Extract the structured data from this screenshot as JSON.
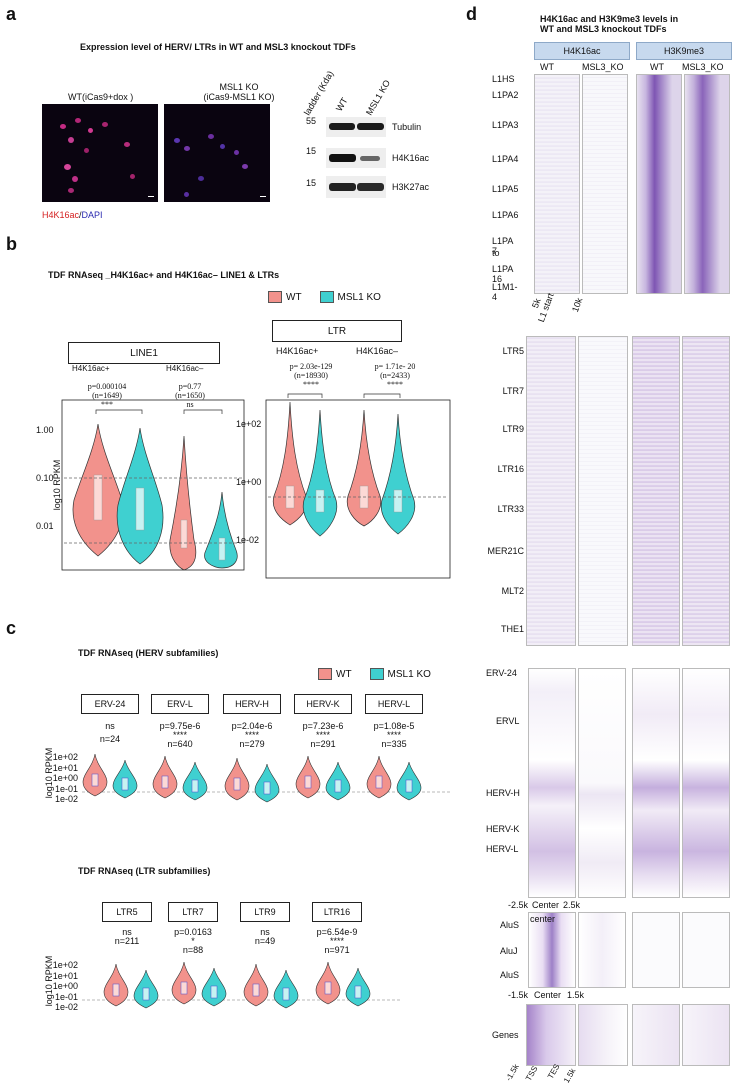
{
  "panels": {
    "a": {
      "label": "a",
      "title": "Expression level of HERV/ LTRs in WT and MSL3 knockout TDFs",
      "image_wt_label": "WT(iCas9+dox )",
      "image_ko_label_line1": "MSL1 KO",
      "image_ko_label_line2": "(iCas9-MSL1 KO)",
      "stain_red": "H4K16ac",
      "stain_sep": "/",
      "stain_blue": "DAPI",
      "blot_col_ladder": "ladder (Kda)",
      "blot_col_wt": "WT",
      "blot_col_ko": "MSL1 KO",
      "blot_rows": [
        {
          "kda": "55",
          "name": "Tubulin"
        },
        {
          "kda": "15",
          "name": "H4K16ac"
        },
        {
          "kda": "15",
          "name": "H3K27ac"
        }
      ]
    },
    "b": {
      "label": "b",
      "title": "TDF RNAseq _H4K16ac+ and H4K16ac– LINE1 & LTRs",
      "legend_wt": "WT",
      "legend_ko": "MSL1 KO",
      "line1_box": "LINE1",
      "ltr_box": "LTR",
      "ylabel": "log10 RPKM",
      "line1_groups": [
        {
          "name": "H4K16ac+",
          "p": "p=0.000104",
          "n": "(n=1649)",
          "sig": "***"
        },
        {
          "name": "H4K16ac–",
          "p": "p=0.77",
          "n": "(n=1650)",
          "sig": "ns"
        }
      ],
      "line1_ticks": [
        "1.00",
        "0.10",
        "0.01"
      ],
      "ltr_groups": [
        {
          "name": "H4K16ac+",
          "p": "p= 2.03e-129",
          "n": "(n=18930)",
          "sig": "****"
        },
        {
          "name": "H4K16ac–",
          "p": "p= 1.71e- 20",
          "n": "(n=2433)",
          "sig": "****"
        }
      ],
      "ltr_ticks": [
        "1e+02",
        "1e+00",
        "1e-02"
      ]
    },
    "c": {
      "label": "c",
      "title1": "TDF RNAseq (HERV subfamilies)",
      "legend_wt": "WT",
      "legend_ko": "MSL1 KO",
      "ylabel": "log10 RPKM",
      "ticks": [
        "1e+02",
        "1e+01",
        "1e+00",
        "1e-01",
        "1e-02"
      ],
      "herv": [
        {
          "name": "ERV-24",
          "p": "ns",
          "sig": "",
          "n": "n=24"
        },
        {
          "name": "ERV-L",
          "p": "p=9.75e-6",
          "sig": "****",
          "n": "n=640"
        },
        {
          "name": "HERV-H",
          "p": "p=2.04e-6",
          "sig": "****",
          "n": "n=279"
        },
        {
          "name": "HERV-K",
          "p": "p=7.23e-6",
          "sig": "****",
          "n": "n=291"
        },
        {
          "name": "HERV-L",
          "p": "p=1.08e-5",
          "sig": "****",
          "n": "n=335"
        }
      ],
      "title2": "TDF RNAseq (LTR subfamilies)",
      "ltr": [
        {
          "name": "LTR5",
          "p": "ns",
          "sig": "",
          "n": "n=211"
        },
        {
          "name": "LTR7",
          "p": "p=0.0163",
          "sig": "*",
          "n": "n=88"
        },
        {
          "name": "LTR9",
          "p": "ns",
          "sig": "",
          "n": "n=49"
        },
        {
          "name": "LTR16",
          "p": "p=6.54e-9",
          "sig": "****",
          "n": "n=971"
        }
      ]
    },
    "d": {
      "label": "d",
      "title_line1": "H4K16ac and H3K9me3 levels in",
      "title_line2": "WT and MSL3 knockout TDFs",
      "header_h4": "H4K16ac",
      "header_h3": "H3K9me3",
      "col_wt": "WT",
      "col_ko": "MSL3_KO",
      "l1_rows": [
        "L1HS",
        "L1PA2",
        "L1PA3",
        "L1PA4",
        "L1PA5",
        "L1PA6",
        "L1PA 7",
        "to",
        "L1PA 16",
        "L1M1-4"
      ],
      "l1_axis": [
        "5k",
        "L1 start",
        "10k"
      ],
      "ltr_rows": [
        "LTR5",
        "LTR7",
        "LTR9",
        "LTR16",
        "LTR33",
        "MER21C",
        "MLT2",
        "THE1"
      ],
      "herv_rows": [
        "ERV-24",
        "ERVL",
        "HERV-H",
        "HERV-K",
        "HERV-L"
      ],
      "herv_axis": [
        "-2.5k",
        "Center",
        "2.5k"
      ],
      "alu_center": "center",
      "alu_rows": [
        "AluS",
        "AluJ",
        "AluS"
      ],
      "alu_axis": [
        "-1.5k",
        "Center",
        "1.5k"
      ],
      "genes_row": "Genes",
      "genes_axis": [
        "-1.5k",
        "TSS",
        "TES",
        "1.5k"
      ]
    }
  }
}
